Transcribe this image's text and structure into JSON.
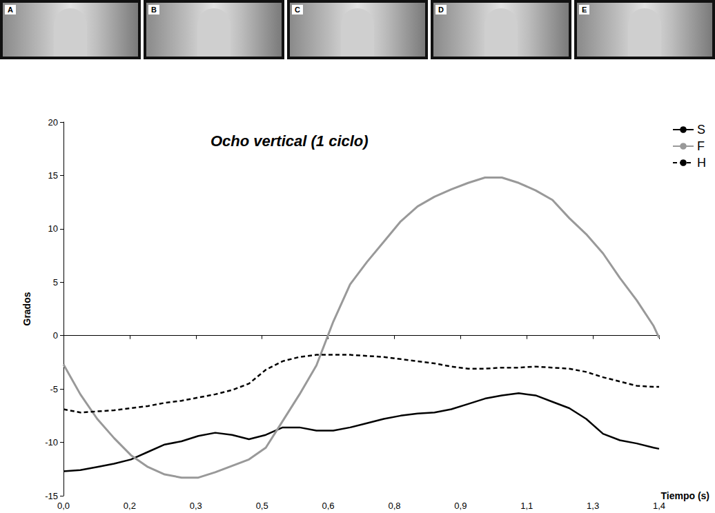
{
  "chart_data": {
    "type": "line",
    "title": "Ocho vertical (1 ciclo)",
    "x_label": "Tiempo (s)",
    "y_label": "Grados",
    "annotations": [
      "A",
      "B",
      "C",
      "D",
      "E"
    ],
    "x": [
      0,
      0.04,
      0.08,
      0.12,
      0.16,
      0.2,
      0.24,
      0.28,
      0.32,
      0.36,
      0.4,
      0.44,
      0.48,
      0.52,
      0.56,
      0.6,
      0.64,
      0.68,
      0.72,
      0.76,
      0.8,
      0.84,
      0.88,
      0.92,
      0.96,
      1.0,
      1.04,
      1.08,
      1.12,
      1.16,
      1.2,
      1.24,
      1.28,
      1.32,
      1.36,
      1.4,
      1.413
    ],
    "series": [
      {
        "name": "S",
        "color": "#000000",
        "line_style": "solid",
        "marker": "none",
        "values": [
          -12.7,
          -12.6,
          -12.3,
          -12,
          -11.6,
          -10.9,
          -10.2,
          -9.9,
          -9.4,
          -9.1,
          -9.3,
          -9.7,
          -9.3,
          -8.6,
          -8.6,
          -8.9,
          -8.9,
          -8.6,
          -8.2,
          -7.8,
          -7.5,
          -7.3,
          -7.2,
          -6.9,
          -6.4,
          -5.9,
          -5.6,
          -5.4,
          -5.6,
          -6.2,
          -6.8,
          -7.8,
          -9.2,
          -9.8,
          -10.1,
          -10.5,
          -10.6
        ]
      },
      {
        "name": "F",
        "color": "#999999",
        "line_style": "solid",
        "marker": "none",
        "values": [
          -2.7,
          -5.5,
          -7.8,
          -9.6,
          -11.2,
          -12.3,
          -13,
          -13.3,
          -13.3,
          -12.8,
          -12.2,
          -11.6,
          -10.5,
          -8,
          -5.5,
          -2.8,
          1.3,
          4.8,
          6.9,
          8.8,
          10.7,
          12.1,
          13,
          13.7,
          14.3,
          14.8,
          14.8,
          14.3,
          13.6,
          12.7,
          11,
          9.5,
          7.7,
          5.4,
          3.3,
          0.9,
          -0.2
        ]
      },
      {
        "name": "H",
        "color": "#000000",
        "line_style": "dashed",
        "marker": "none",
        "values": [
          -6.9,
          -7.2,
          -7.1,
          -7,
          -6.8,
          -6.6,
          -6.3,
          -6.1,
          -5.8,
          -5.5,
          -5.1,
          -4.5,
          -3.2,
          -2.4,
          -2,
          -1.8,
          -1.8,
          -1.8,
          -1.9,
          -2,
          -2.2,
          -2.4,
          -2.6,
          -2.9,
          -3.1,
          -3.1,
          -3,
          -3,
          -2.9,
          -3,
          -3.1,
          -3.4,
          -3.9,
          -4.3,
          -4.7,
          -4.8,
          -4.8
        ]
      }
    ],
    "xlim": [
      0,
      1.413
    ],
    "xticks": [
      {
        "value": 0,
        "label": "0,0"
      },
      {
        "value": 0.157,
        "label": "0,2"
      },
      {
        "value": 0.314,
        "label": "0,3"
      },
      {
        "value": 0.471,
        "label": "0,5"
      },
      {
        "value": 0.628,
        "label": "0,6"
      },
      {
        "value": 0.785,
        "label": "0,8"
      },
      {
        "value": 0.942,
        "label": "0,9"
      },
      {
        "value": 1.099,
        "label": "1,1"
      },
      {
        "value": 1.256,
        "label": "1,3"
      },
      {
        "value": 1.413,
        "label": "1,4"
      }
    ],
    "ylim": [
      -15,
      20
    ],
    "yticks": [
      -15,
      -10,
      -5,
      0,
      5,
      10,
      15,
      20
    ],
    "grid": false,
    "legend": "top-right"
  }
}
